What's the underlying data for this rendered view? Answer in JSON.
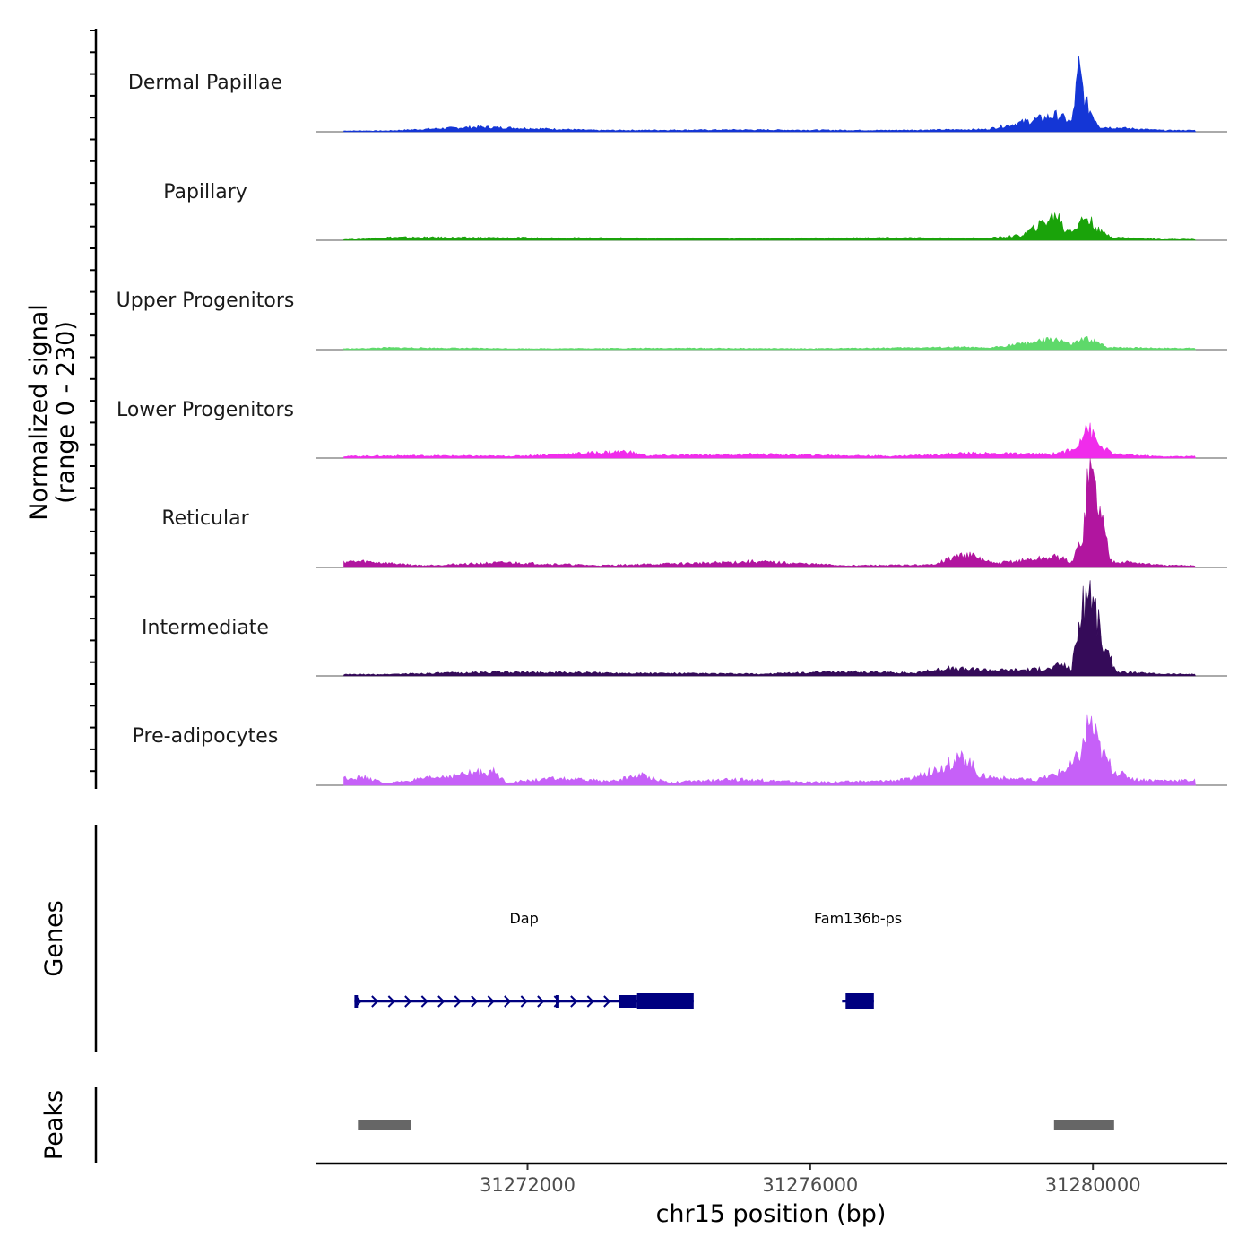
{
  "chart_data": {
    "type": "coverage-track",
    "chromosome": "chr15",
    "region": [
      31269000,
      31281900
    ],
    "ylabel_line1": "Normalized signal",
    "ylabel_line2": "(range 0 - 230)",
    "y_range": [
      0,
      230
    ],
    "genes_label": "Genes",
    "peaks_label": "Peaks",
    "xlabel": "chr15 position (bp)",
    "x_ticks": [
      31272000,
      31276000,
      31280000
    ],
    "tracks": [
      {
        "name": "Dermal Papillae",
        "color": "#1436d6",
        "profile": [
          [
            31270000,
            2
          ],
          [
            31271300,
            10
          ],
          [
            31273000,
            3
          ],
          [
            31275000,
            4
          ],
          [
            31277000,
            3
          ],
          [
            31278500,
            5
          ],
          [
            31279500,
            35
          ],
          [
            31279700,
            20
          ],
          [
            31279800,
            130
          ],
          [
            31279900,
            60
          ],
          [
            31280100,
            10
          ],
          [
            31281000,
            3
          ]
        ]
      },
      {
        "name": "Papillary",
        "color": "#1aa30a",
        "profile": [
          [
            31269600,
            2
          ],
          [
            31270000,
            6
          ],
          [
            31272000,
            5
          ],
          [
            31274000,
            4
          ],
          [
            31276000,
            4
          ],
          [
            31277000,
            5
          ],
          [
            31278500,
            4
          ],
          [
            31279000,
            10
          ],
          [
            31279500,
            55
          ],
          [
            31279600,
            20
          ],
          [
            31279750,
            25
          ],
          [
            31279900,
            50
          ],
          [
            31280100,
            18
          ],
          [
            31280300,
            6
          ],
          [
            31281000,
            2
          ]
        ]
      },
      {
        "name": "Upper Progenitors",
        "color": "#5ed96a",
        "profile": [
          [
            31269600,
            2
          ],
          [
            31270000,
            4
          ],
          [
            31272000,
            2
          ],
          [
            31274000,
            3
          ],
          [
            31276000,
            2
          ],
          [
            31278200,
            5
          ],
          [
            31278500,
            3
          ],
          [
            31279500,
            22
          ],
          [
            31279700,
            10
          ],
          [
            31279800,
            18
          ],
          [
            31279950,
            22
          ],
          [
            31280200,
            5
          ],
          [
            31281000,
            3
          ]
        ]
      },
      {
        "name": "Lower Progenitors",
        "color": "#f02ceb",
        "profile": [
          [
            31269600,
            4
          ],
          [
            31270300,
            5
          ],
          [
            31271800,
            4
          ],
          [
            31273400,
            14
          ],
          [
            31273700,
            5
          ],
          [
            31275200,
            8
          ],
          [
            31277200,
            4
          ],
          [
            31278200,
            10
          ],
          [
            31279400,
            8
          ],
          [
            31279750,
            18
          ],
          [
            31279900,
            70
          ],
          [
            31280100,
            25
          ],
          [
            31280300,
            8
          ],
          [
            31281000,
            3
          ],
          [
            31281800,
            4
          ]
        ]
      },
      {
        "name": "Reticular",
        "color": "#b1159f",
        "profile": [
          [
            31269700,
            12
          ],
          [
            31270500,
            4
          ],
          [
            31271700,
            10
          ],
          [
            31273000,
            4
          ],
          [
            31274200,
            8
          ],
          [
            31275200,
            12
          ],
          [
            31276500,
            4
          ],
          [
            31277700,
            5
          ],
          [
            31278200,
            28
          ],
          [
            31278600,
            8
          ],
          [
            31279500,
            22
          ],
          [
            31279700,
            10
          ],
          [
            31279850,
            60
          ],
          [
            31279950,
            210
          ],
          [
            31280100,
            120
          ],
          [
            31280250,
            14
          ],
          [
            31281000,
            4
          ],
          [
            31281800,
            4
          ]
        ]
      },
      {
        "name": "Intermediate",
        "color": "#350b59",
        "profile": [
          [
            31269800,
            3
          ],
          [
            31271600,
            8
          ],
          [
            31273400,
            6
          ],
          [
            31275300,
            4
          ],
          [
            31276500,
            9
          ],
          [
            31277500,
            6
          ],
          [
            31277900,
            16
          ],
          [
            31278300,
            14
          ],
          [
            31278800,
            12
          ],
          [
            31279400,
            15
          ],
          [
            31279550,
            25
          ],
          [
            31279700,
            15
          ],
          [
            31279800,
            110
          ],
          [
            31279950,
            195
          ],
          [
            31280150,
            60
          ],
          [
            31280350,
            8
          ],
          [
            31281000,
            4
          ],
          [
            31281800,
            3
          ]
        ]
      },
      {
        "name": "Pre-adipocytes",
        "color": "#c660f8",
        "profile": [
          [
            31269700,
            16
          ],
          [
            31270000,
            4
          ],
          [
            31271500,
            30
          ],
          [
            31271700,
            6
          ],
          [
            31272400,
            14
          ],
          [
            31273200,
            8
          ],
          [
            31273600,
            22
          ],
          [
            31274000,
            6
          ],
          [
            31275000,
            12
          ],
          [
            31276000,
            6
          ],
          [
            31276900,
            8
          ],
          [
            31277400,
            12
          ],
          [
            31277900,
            40
          ],
          [
            31278200,
            60
          ],
          [
            31278400,
            20
          ],
          [
            31278700,
            15
          ],
          [
            31279200,
            10
          ],
          [
            31279500,
            25
          ],
          [
            31279700,
            40
          ],
          [
            31279850,
            75
          ],
          [
            31279950,
            140
          ],
          [
            31280100,
            75
          ],
          [
            31280300,
            30
          ],
          [
            31280600,
            12
          ],
          [
            31281000,
            10
          ],
          [
            31281800,
            10
          ]
        ]
      }
    ],
    "genes": [
      {
        "name": "Dap",
        "start": 31269550,
        "end": 31274350,
        "strand": "+",
        "exons": [
          [
            31269550,
            31269600
          ],
          [
            31272400,
            31272450
          ],
          [
            31273300,
            31273550
          ],
          [
            31273550,
            31274350
          ]
        ]
      },
      {
        "name": "Fam136b-ps",
        "start": 31276450,
        "end": 31276900,
        "strand": "+",
        "exons": [
          [
            31276500,
            31276900
          ]
        ]
      }
    ],
    "peaks": [
      [
        31269600,
        31270350
      ],
      [
        31279450,
        31280300
      ]
    ]
  }
}
